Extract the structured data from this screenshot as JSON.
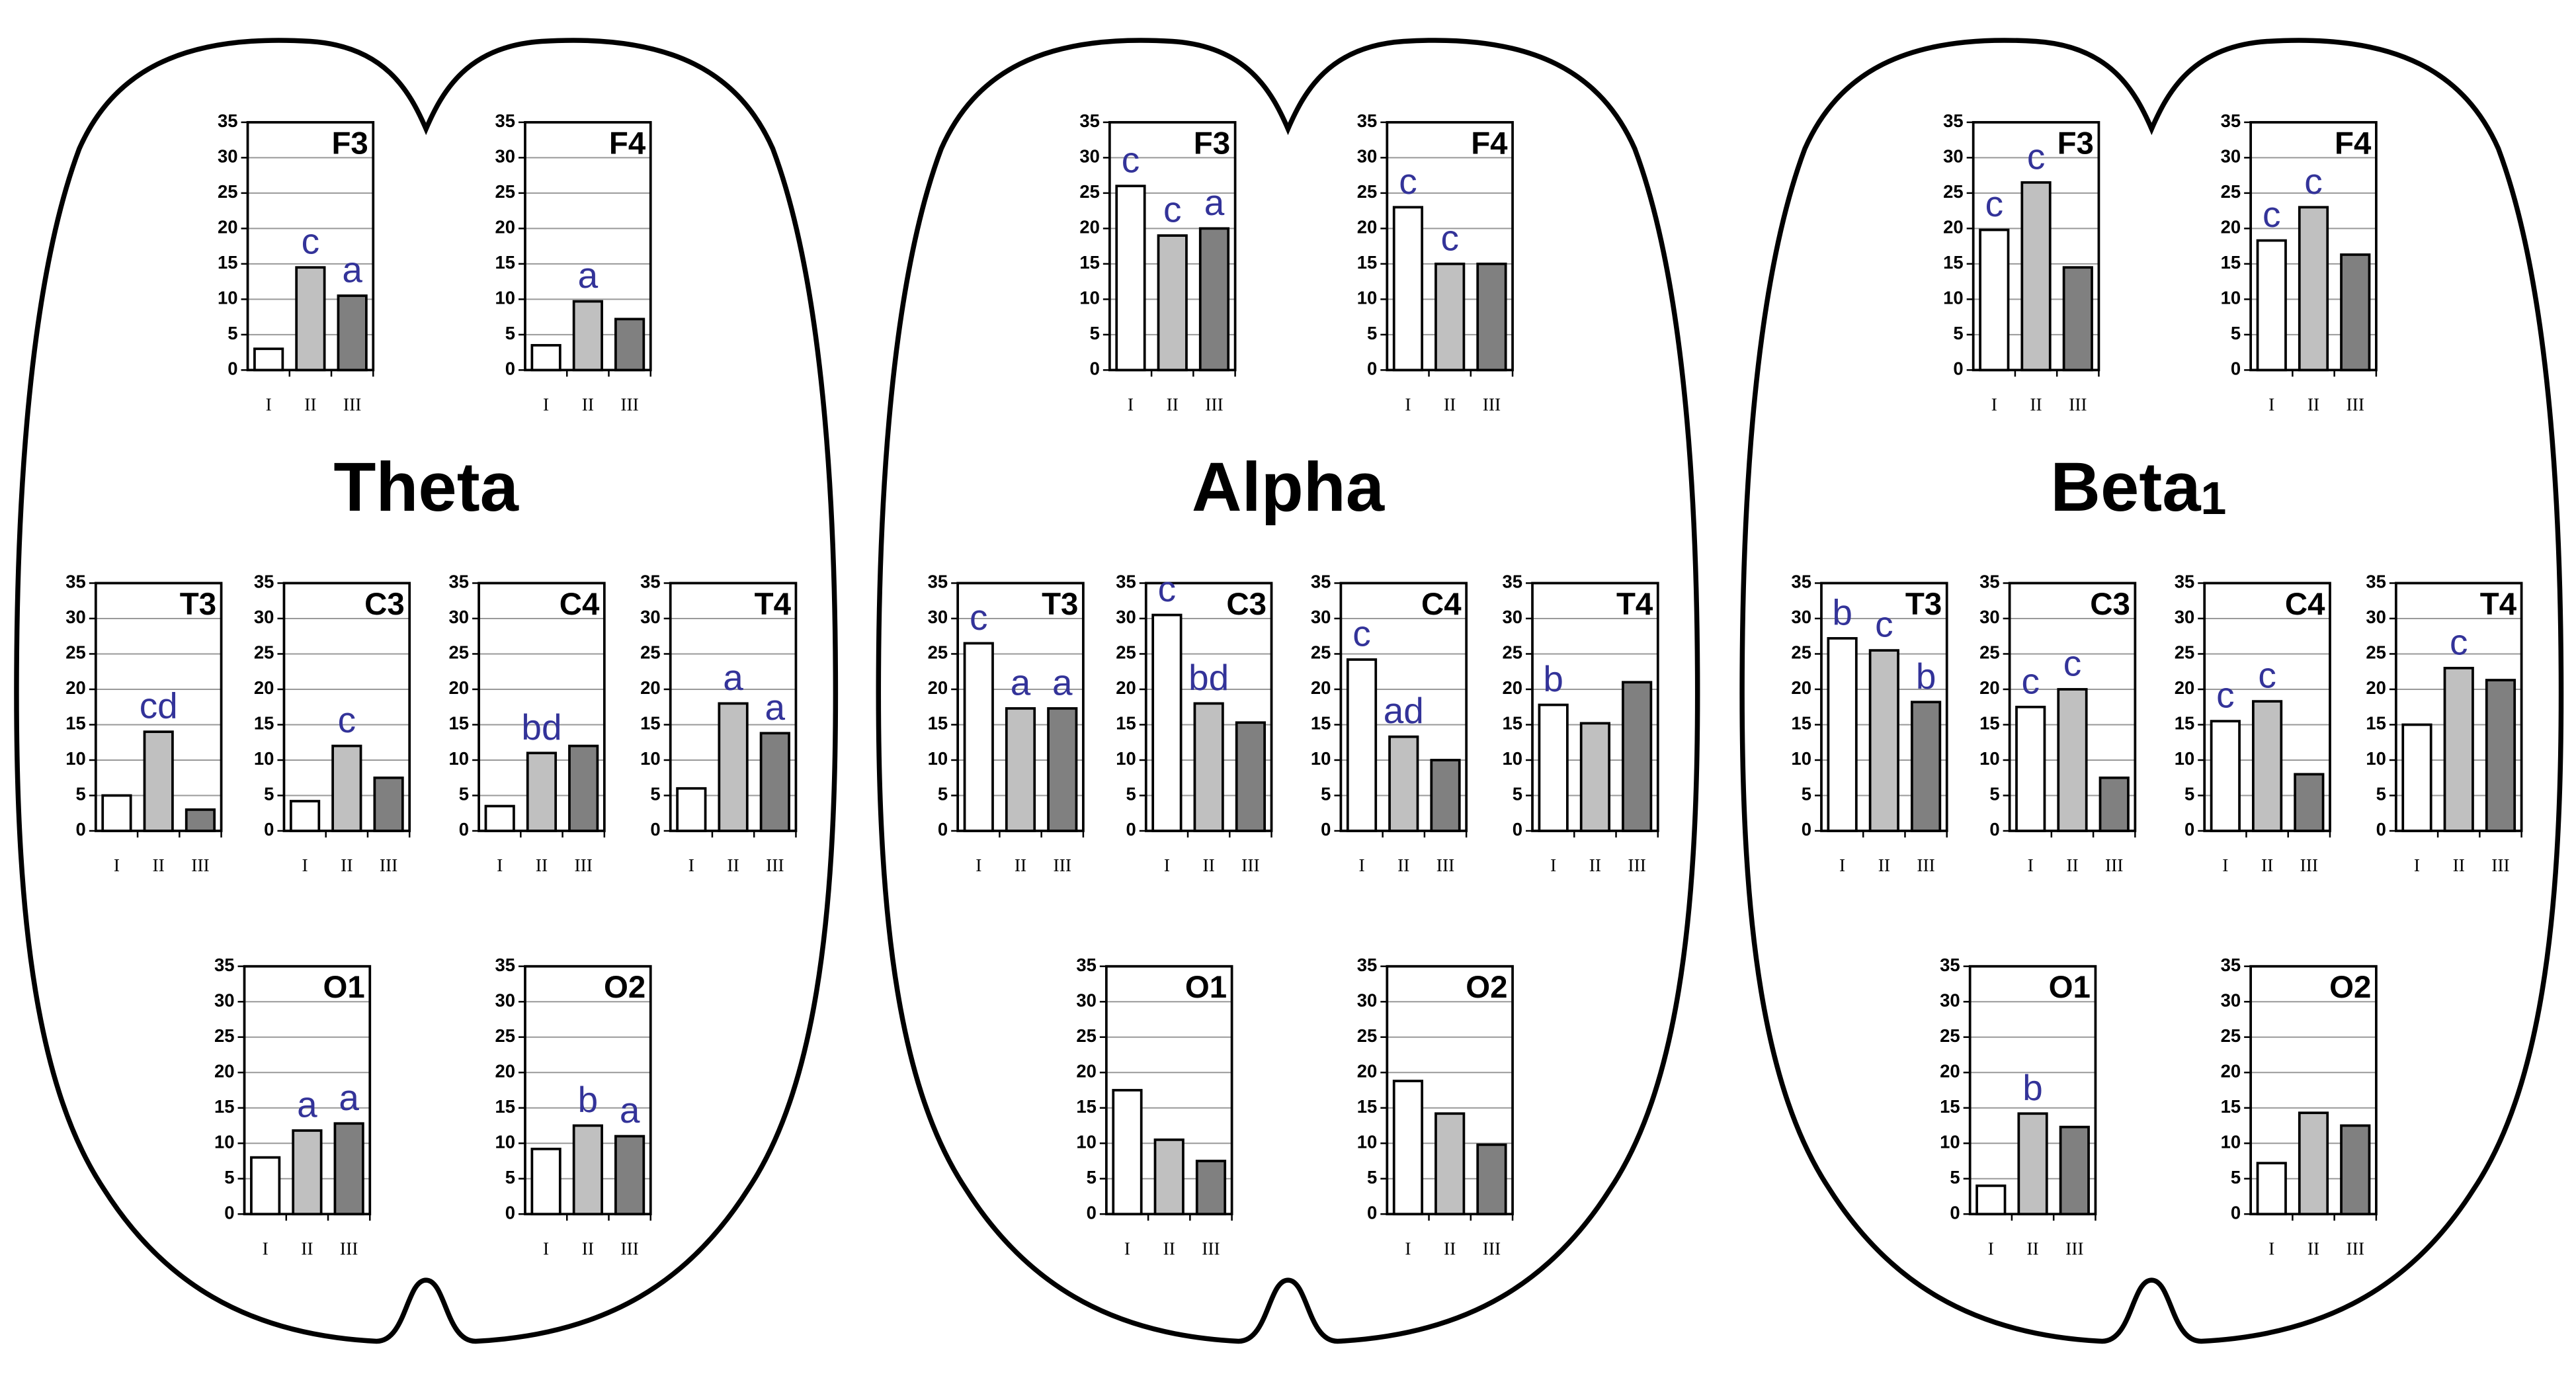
{
  "panels": [
    {
      "title": "Theta",
      "chart_data": [
        {
          "type": "bar",
          "title": "F3",
          "categories": [
            "I",
            "II",
            "III"
          ],
          "values": [
            3,
            14.5,
            10.5
          ],
          "annotations": [
            null,
            "c",
            "a"
          ],
          "colors": [
            "#ffffff",
            "#c0c0c0",
            "#808080"
          ],
          "ylim": [
            0,
            35
          ],
          "yticks": [
            0,
            5,
            10,
            15,
            20,
            25,
            30,
            35
          ],
          "grid": true
        },
        {
          "type": "bar",
          "title": "F4",
          "categories": [
            "I",
            "II",
            "III"
          ],
          "values": [
            3.5,
            9.7,
            7.2
          ],
          "annotations": [
            null,
            "a",
            null
          ],
          "colors": [
            "#ffffff",
            "#c0c0c0",
            "#808080"
          ],
          "ylim": [
            0,
            35
          ],
          "yticks": [
            0,
            5,
            10,
            15,
            20,
            25,
            30,
            35
          ],
          "grid": true
        },
        {
          "type": "bar",
          "title": "T3",
          "categories": [
            "I",
            "II",
            "III"
          ],
          "values": [
            5,
            14,
            3
          ],
          "annotations": [
            null,
            "cd",
            null
          ],
          "colors": [
            "#ffffff",
            "#c0c0c0",
            "#808080"
          ],
          "ylim": [
            0,
            35
          ],
          "yticks": [
            0,
            5,
            10,
            15,
            20,
            25,
            30,
            35
          ],
          "grid": true
        },
        {
          "type": "bar",
          "title": "C3",
          "categories": [
            "I",
            "II",
            "III"
          ],
          "values": [
            4.2,
            12,
            7.5
          ],
          "annotations": [
            null,
            "c",
            null
          ],
          "colors": [
            "#ffffff",
            "#c0c0c0",
            "#808080"
          ],
          "ylim": [
            0,
            35
          ],
          "yticks": [
            0,
            5,
            10,
            15,
            20,
            25,
            30,
            35
          ],
          "grid": true
        },
        {
          "type": "bar",
          "title": "C4",
          "categories": [
            "I",
            "II",
            "III"
          ],
          "values": [
            3.5,
            11,
            12
          ],
          "annotations": [
            null,
            "bd",
            null
          ],
          "colors": [
            "#ffffff",
            "#c0c0c0",
            "#808080"
          ],
          "ylim": [
            0,
            35
          ],
          "yticks": [
            0,
            5,
            10,
            15,
            20,
            25,
            30,
            35
          ],
          "grid": true
        },
        {
          "type": "bar",
          "title": "T4",
          "categories": [
            "I",
            "II",
            "III"
          ],
          "values": [
            6,
            18,
            13.8
          ],
          "annotations": [
            null,
            "a",
            "a"
          ],
          "colors": [
            "#ffffff",
            "#c0c0c0",
            "#808080"
          ],
          "ylim": [
            0,
            35
          ],
          "yticks": [
            0,
            5,
            10,
            15,
            20,
            25,
            30,
            35
          ],
          "grid": true
        },
        {
          "type": "bar",
          "title": "O1",
          "categories": [
            "I",
            "II",
            "III"
          ],
          "values": [
            8,
            11.8,
            12.8
          ],
          "annotations": [
            null,
            "a",
            "a"
          ],
          "colors": [
            "#ffffff",
            "#c0c0c0",
            "#808080"
          ],
          "ylim": [
            0,
            35
          ],
          "yticks": [
            0,
            5,
            10,
            15,
            20,
            25,
            30,
            35
          ],
          "grid": true
        },
        {
          "type": "bar",
          "title": "O2",
          "categories": [
            "I",
            "II",
            "III"
          ],
          "values": [
            9.2,
            12.5,
            11
          ],
          "annotations": [
            null,
            "b",
            "a"
          ],
          "colors": [
            "#ffffff",
            "#c0c0c0",
            "#808080"
          ],
          "ylim": [
            0,
            35
          ],
          "yticks": [
            0,
            5,
            10,
            15,
            20,
            25,
            30,
            35
          ],
          "grid": true
        }
      ]
    },
    {
      "title": "Alpha",
      "chart_data": [
        {
          "type": "bar",
          "title": "F3",
          "categories": [
            "I",
            "II",
            "III"
          ],
          "values": [
            26,
            19,
            20
          ],
          "annotations": [
            "c",
            "c",
            "a"
          ],
          "colors": [
            "#ffffff",
            "#c0c0c0",
            "#808080"
          ],
          "ylim": [
            0,
            35
          ],
          "yticks": [
            0,
            5,
            10,
            15,
            20,
            25,
            30,
            35
          ],
          "grid": true
        },
        {
          "type": "bar",
          "title": "F4",
          "categories": [
            "I",
            "II",
            "III"
          ],
          "values": [
            23,
            15,
            15
          ],
          "annotations": [
            "c",
            "c",
            null
          ],
          "colors": [
            "#ffffff",
            "#c0c0c0",
            "#808080"
          ],
          "ylim": [
            0,
            35
          ],
          "yticks": [
            0,
            5,
            10,
            15,
            20,
            25,
            30,
            35
          ],
          "grid": true
        },
        {
          "type": "bar",
          "title": "T3",
          "categories": [
            "I",
            "II",
            "III"
          ],
          "values": [
            26.5,
            17.3,
            17.3
          ],
          "annotations": [
            "c",
            "a",
            "a"
          ],
          "colors": [
            "#ffffff",
            "#c0c0c0",
            "#808080"
          ],
          "ylim": [
            0,
            35
          ],
          "yticks": [
            0,
            5,
            10,
            15,
            20,
            25,
            30,
            35
          ],
          "grid": true
        },
        {
          "type": "bar",
          "title": "C3",
          "categories": [
            "I",
            "II",
            "III"
          ],
          "values": [
            30.5,
            18,
            15.3
          ],
          "annotations": [
            "c",
            "bd",
            null
          ],
          "colors": [
            "#ffffff",
            "#c0c0c0",
            "#808080"
          ],
          "ylim": [
            0,
            35
          ],
          "yticks": [
            0,
            5,
            10,
            15,
            20,
            25,
            30,
            35
          ],
          "grid": true
        },
        {
          "type": "bar",
          "title": "C4",
          "categories": [
            "I",
            "II",
            "III"
          ],
          "values": [
            24.2,
            13.3,
            10
          ],
          "annotations": [
            "c",
            "ad",
            null
          ],
          "colors": [
            "#ffffff",
            "#c0c0c0",
            "#808080"
          ],
          "ylim": [
            0,
            35
          ],
          "yticks": [
            0,
            5,
            10,
            15,
            20,
            25,
            30,
            35
          ],
          "grid": true
        },
        {
          "type": "bar",
          "title": "T4",
          "categories": [
            "I",
            "II",
            "III"
          ],
          "values": [
            17.8,
            15.2,
            21
          ],
          "annotations": [
            "b",
            null,
            null
          ],
          "colors": [
            "#ffffff",
            "#c0c0c0",
            "#808080"
          ],
          "ylim": [
            0,
            35
          ],
          "yticks": [
            0,
            5,
            10,
            15,
            20,
            25,
            30,
            35
          ],
          "grid": true
        },
        {
          "type": "bar",
          "title": "O1",
          "categories": [
            "I",
            "II",
            "III"
          ],
          "values": [
            17.5,
            10.5,
            7.5
          ],
          "annotations": [
            null,
            null,
            null
          ],
          "colors": [
            "#ffffff",
            "#c0c0c0",
            "#808080"
          ],
          "ylim": [
            0,
            35
          ],
          "yticks": [
            0,
            5,
            10,
            15,
            20,
            25,
            30,
            35
          ],
          "grid": true
        },
        {
          "type": "bar",
          "title": "O2",
          "categories": [
            "I",
            "II",
            "III"
          ],
          "values": [
            18.8,
            14.2,
            9.8
          ],
          "annotations": [
            null,
            null,
            null
          ],
          "colors": [
            "#ffffff",
            "#c0c0c0",
            "#808080"
          ],
          "ylim": [
            0,
            35
          ],
          "yticks": [
            0,
            5,
            10,
            15,
            20,
            25,
            30,
            35
          ],
          "grid": true
        }
      ]
    },
    {
      "title": "Beta",
      "subscript": "1",
      "chart_data": [
        {
          "type": "bar",
          "title": "F3",
          "categories": [
            "I",
            "II",
            "III"
          ],
          "values": [
            19.8,
            26.5,
            14.5
          ],
          "annotations": [
            "c",
            "c",
            null
          ],
          "colors": [
            "#ffffff",
            "#c0c0c0",
            "#808080"
          ],
          "ylim": [
            0,
            35
          ],
          "yticks": [
            0,
            5,
            10,
            15,
            20,
            25,
            30,
            35
          ],
          "grid": true
        },
        {
          "type": "bar",
          "title": "F4",
          "categories": [
            "I",
            "II",
            "III"
          ],
          "values": [
            18.3,
            23,
            16.3
          ],
          "annotations": [
            "c",
            "c",
            null
          ],
          "colors": [
            "#ffffff",
            "#c0c0c0",
            "#808080"
          ],
          "ylim": [
            0,
            35
          ],
          "yticks": [
            0,
            5,
            10,
            15,
            20,
            25,
            30,
            35
          ],
          "grid": true
        },
        {
          "type": "bar",
          "title": "T3",
          "categories": [
            "I",
            "II",
            "III"
          ],
          "values": [
            27.2,
            25.5,
            18.2
          ],
          "annotations": [
            "b",
            "c",
            "b"
          ],
          "colors": [
            "#ffffff",
            "#c0c0c0",
            "#808080"
          ],
          "ylim": [
            0,
            35
          ],
          "yticks": [
            0,
            5,
            10,
            15,
            20,
            25,
            30,
            35
          ],
          "grid": true
        },
        {
          "type": "bar",
          "title": "C3",
          "categories": [
            "I",
            "II",
            "III"
          ],
          "values": [
            17.5,
            20,
            7.5
          ],
          "annotations": [
            "c",
            "c",
            null
          ],
          "colors": [
            "#ffffff",
            "#c0c0c0",
            "#808080"
          ],
          "ylim": [
            0,
            35
          ],
          "yticks": [
            0,
            5,
            10,
            15,
            20,
            25,
            30,
            35
          ],
          "grid": true
        },
        {
          "type": "bar",
          "title": "C4",
          "categories": [
            "I",
            "II",
            "III"
          ],
          "values": [
            15.5,
            18.3,
            8
          ],
          "annotations": [
            "c",
            "c",
            null
          ],
          "colors": [
            "#ffffff",
            "#c0c0c0",
            "#808080"
          ],
          "ylim": [
            0,
            35
          ],
          "yticks": [
            0,
            5,
            10,
            15,
            20,
            25,
            30,
            35
          ],
          "grid": true
        },
        {
          "type": "bar",
          "title": "T4",
          "categories": [
            "I",
            "II",
            "III"
          ],
          "values": [
            15,
            23,
            21.3
          ],
          "annotations": [
            null,
            "c",
            null
          ],
          "colors": [
            "#ffffff",
            "#c0c0c0",
            "#808080"
          ],
          "ylim": [
            0,
            35
          ],
          "yticks": [
            0,
            5,
            10,
            15,
            20,
            25,
            30,
            35
          ],
          "grid": true
        },
        {
          "type": "bar",
          "title": "O1",
          "categories": [
            "I",
            "II",
            "III"
          ],
          "values": [
            4,
            14.2,
            12.3
          ],
          "annotations": [
            null,
            "b",
            null
          ],
          "colors": [
            "#ffffff",
            "#c0c0c0",
            "#808080"
          ],
          "ylim": [
            0,
            35
          ],
          "yticks": [
            0,
            5,
            10,
            15,
            20,
            25,
            30,
            35
          ],
          "grid": true
        },
        {
          "type": "bar",
          "title": "O2",
          "categories": [
            "I",
            "II",
            "III"
          ],
          "values": [
            7.2,
            14.3,
            12.5
          ],
          "annotations": [
            null,
            null,
            null
          ],
          "colors": [
            "#ffffff",
            "#c0c0c0",
            "#808080"
          ],
          "ylim": [
            0,
            35
          ],
          "yticks": [
            0,
            5,
            10,
            15,
            20,
            25,
            30,
            35
          ],
          "grid": true
        }
      ]
    }
  ]
}
